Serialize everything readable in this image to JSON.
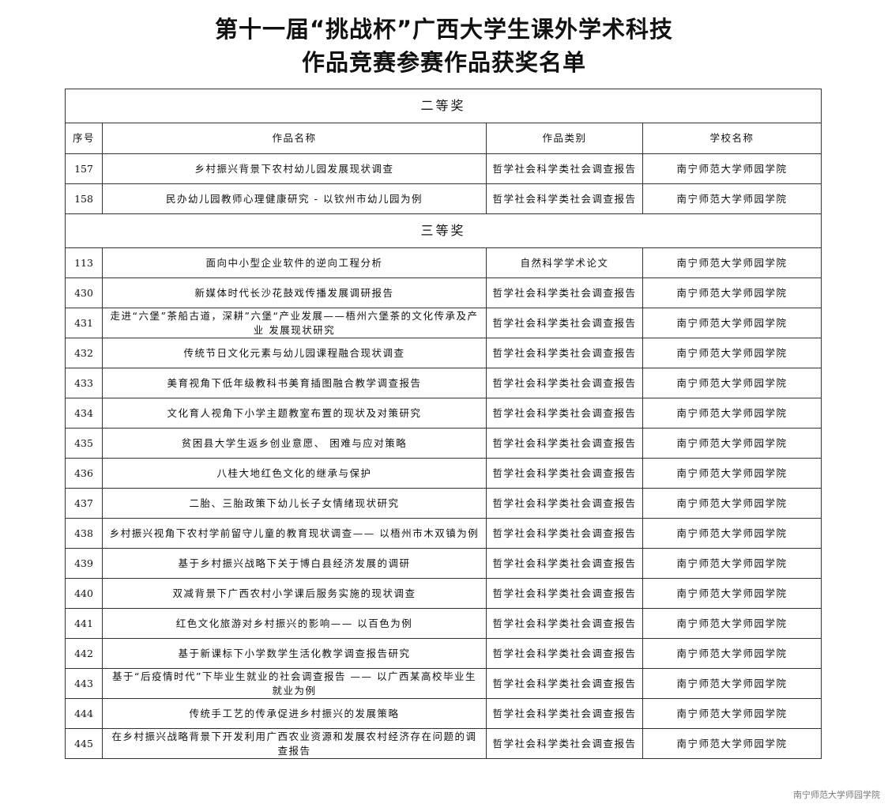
{
  "title_line1": "第十一届“挑战杯”广西大学生课外学术科技",
  "title_line2": "作品竞赛参赛作品获奖名单",
  "columns": [
    "序号",
    "作品名称",
    "作品类别",
    "学校名称"
  ],
  "sections": [
    {
      "label": "二等奖",
      "rows": [
        {
          "no": "157",
          "name": "乡村振兴背景下农村幼儿园发展现状调查",
          "category": "哲学社会科学类社会调查报告",
          "school": "南宁师范大学师园学院"
        },
        {
          "no": "158",
          "name": "民办幼儿园教师心理健康研究 - 以钦州市幼儿园为例",
          "category": "哲学社会科学类社会调查报告",
          "school": "南宁师范大学师园学院"
        }
      ]
    },
    {
      "label": "三等奖",
      "rows": [
        {
          "no": "113",
          "name": "面向中小型企业软件的逆向工程分析",
          "category": "自然科学学术论文",
          "school": "南宁师范大学师园学院"
        },
        {
          "no": "430",
          "name": "新媒体时代长沙花鼓戏传播发展调研报告",
          "category": "哲学社会科学类社会调查报告",
          "school": "南宁师范大学师园学院"
        },
        {
          "no": "431",
          "name": "走进“六堡”茶船古道，深耕”六堡“产业发展——梧州六堡茶的文化传承及产业 发展现状研究",
          "category": "哲学社会科学类社会调查报告",
          "school": "南宁师范大学师园学院"
        },
        {
          "no": "432",
          "name": "传统节日文化元素与幼儿园课程融合现状调查",
          "category": "哲学社会科学类社会调查报告",
          "school": "南宁师范大学师园学院"
        },
        {
          "no": "433",
          "name": "美育视角下低年级教科书美育插图融合教学调查报告",
          "category": "哲学社会科学类社会调查报告",
          "school": "南宁师范大学师园学院"
        },
        {
          "no": "434",
          "name": "文化育人视角下小学主题教室布置的现状及对策研究",
          "category": "哲学社会科学类社会调查报告",
          "school": "南宁师范大学师园学院"
        },
        {
          "no": "435",
          "name": "贫困县大学生返乡创业意愿、 困难与应对策略",
          "category": "哲学社会科学类社会调查报告",
          "school": "南宁师范大学师园学院"
        },
        {
          "no": "436",
          "name": "八桂大地红色文化的继承与保护",
          "category": "哲学社会科学类社会调查报告",
          "school": "南宁师范大学师园学院"
        },
        {
          "no": "437",
          "name": "二胎、三胎政策下幼儿长子女情绪现状研究",
          "category": "哲学社会科学类社会调查报告",
          "school": "南宁师范大学师园学院"
        },
        {
          "no": "438",
          "name": "乡村振兴视角下农村学前留守儿童的教育现状调查—— 以梧州市木双镇为例",
          "category": "哲学社会科学类社会调查报告",
          "school": "南宁师范大学师园学院"
        },
        {
          "no": "439",
          "name": "基于乡村振兴战略下关于博白县经济发展的调研",
          "category": "哲学社会科学类社会调查报告",
          "school": "南宁师范大学师园学院"
        },
        {
          "no": "440",
          "name": "双减背景下广西农村小学课后服务实施的现状调查",
          "category": "哲学社会科学类社会调查报告",
          "school": "南宁师范大学师园学院"
        },
        {
          "no": "441",
          "name": "红色文化旅游对乡村振兴的影响—— 以百色为例",
          "category": "哲学社会科学类社会调查报告",
          "school": "南宁师范大学师园学院"
        },
        {
          "no": "442",
          "name": "基于新课标下小学数学生活化教学调查报告研究",
          "category": "哲学社会科学类社会调查报告",
          "school": "南宁师范大学师园学院"
        },
        {
          "no": "443",
          "name": "基于“后疫情时代”下毕业生就业的社会调查报告 ——  以广西某高校毕业生 就业为例",
          "category": "哲学社会科学类社会调查报告",
          "school": "南宁师范大学师园学院"
        },
        {
          "no": "444",
          "name": "传统手工艺的传承促进乡村振兴的发展策略",
          "category": "哲学社会科学类社会调查报告",
          "school": "南宁师范大学师园学院"
        },
        {
          "no": "445",
          "name": "在乡村振兴战略背景下开发利用广西农业资源和发展农村经济存在问题的调查报告",
          "category": "哲学社会科学类社会调查报告",
          "school": "南宁师范大学师园学院"
        }
      ]
    }
  ],
  "footer": "南宁师范大学师园学院"
}
